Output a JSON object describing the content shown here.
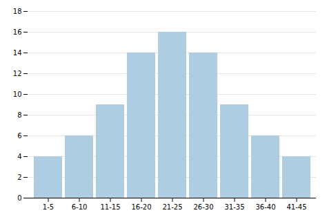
{
  "chart_data": {
    "type": "bar",
    "categories": [
      "1-5",
      "6-10",
      "11-15",
      "16-20",
      "21-25",
      "26-30",
      "31-35",
      "36-40",
      "41-45"
    ],
    "values": [
      4,
      6,
      9,
      14,
      16,
      14,
      9,
      6,
      4
    ],
    "color": "#aecde2",
    "ylim": [
      0,
      18
    ],
    "yticks": [
      0,
      2,
      4,
      6,
      8,
      10,
      12,
      14,
      16,
      18
    ],
    "grid": true
  }
}
